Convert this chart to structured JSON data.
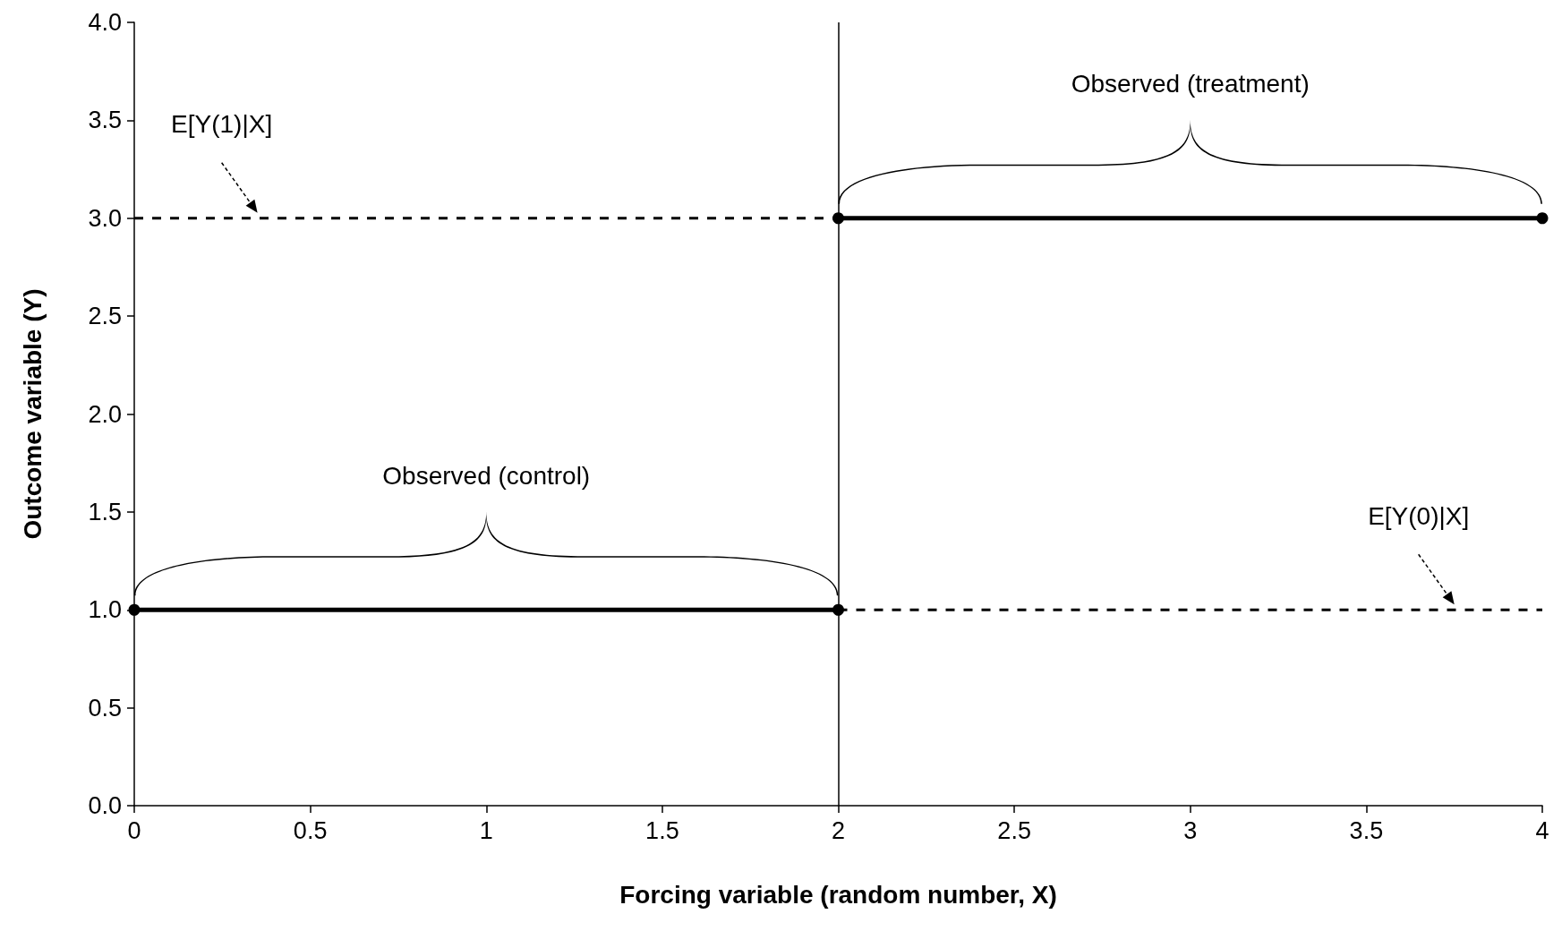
{
  "chart_data": {
    "type": "line",
    "xlabel": "Forcing variable (random number, X)",
    "ylabel": "Outcome variable (Y)",
    "xlim": [
      0,
      4
    ],
    "xticks": [
      0,
      0.5,
      1,
      1.5,
      2,
      2.5,
      3,
      3.5,
      4
    ],
    "ylim": [
      0,
      4
    ],
    "yticks": [
      {
        "value": 0,
        "label": "0.0"
      },
      {
        "value": 0.5,
        "label": "0.5"
      },
      {
        "value": 1,
        "label": "1.0"
      },
      {
        "value": 1.5,
        "label": "1.5"
      },
      {
        "value": 2,
        "label": "2.0"
      },
      {
        "value": 2.5,
        "label": "2.5"
      },
      {
        "value": 3,
        "label": "3.0"
      },
      {
        "value": 3.5,
        "label": "3.5"
      },
      {
        "value": 4,
        "label": "4.0"
      }
    ],
    "grid": false,
    "series": [
      {
        "type": "line",
        "x": [
          0,
          2
        ],
        "values": [
          1,
          1
        ],
        "color": "#000000",
        "marker": "circle",
        "line_style": "solid"
      },
      {
        "type": "line",
        "x": [
          2,
          4
        ],
        "values": [
          3,
          3
        ],
        "color": "#000000",
        "marker": "circle",
        "line_style": "solid"
      },
      {
        "type": "line",
        "x": [
          0,
          2
        ],
        "values": [
          3,
          3
        ],
        "color": "#000000",
        "marker": "none",
        "line_style": "dashed"
      },
      {
        "type": "line",
        "x": [
          2,
          4
        ],
        "values": [
          1,
          1
        ],
        "color": "#000000",
        "marker": "none",
        "line_style": "dashed"
      }
    ],
    "ref_lines": [
      {
        "axis": "x",
        "value": 2,
        "color": "#000000"
      }
    ],
    "annotations": [
      "Observed (treatment)",
      "E[Y(1)|X]",
      "Observed (control)",
      "E[Y(0)|X]"
    ]
  }
}
